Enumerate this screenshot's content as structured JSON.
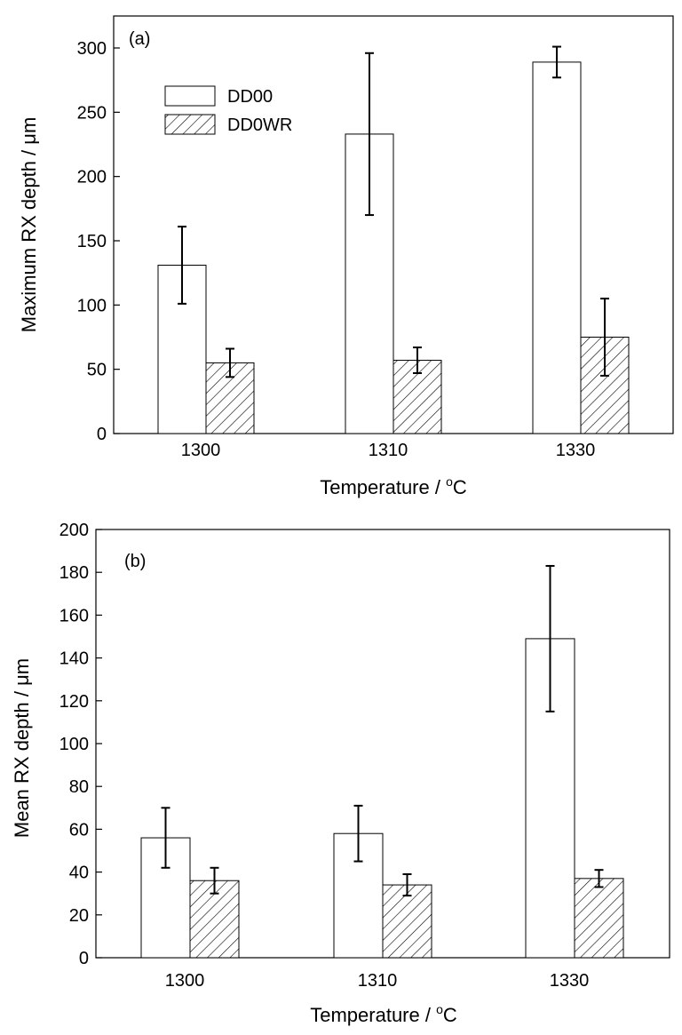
{
  "chart_data": [
    {
      "type": "bar",
      "panel_label": "(a)",
      "xlabel": "Temperature / ",
      "xlabel_unit": "C",
      "xlabel_degree": "o",
      "ylabel": "Maximum RX depth / μm",
      "ylim": [
        0,
        320
      ],
      "yticks": [
        0,
        50,
        100,
        150,
        200,
        250,
        300
      ],
      "categories": [
        "1300",
        "1310",
        "1330"
      ],
      "legend": {
        "position": "top-left",
        "entries": [
          "DD00",
          "DD0WR"
        ]
      },
      "grid": false,
      "series": [
        {
          "name": "DD00",
          "fill": "plain",
          "values": [
            131,
            233,
            289
          ],
          "errors": [
            30,
            63,
            12
          ]
        },
        {
          "name": "DD0WR",
          "fill": "hatched",
          "values": [
            55,
            57,
            75
          ],
          "errors": [
            11,
            10,
            30
          ]
        }
      ]
    },
    {
      "type": "bar",
      "panel_label": "(b)",
      "xlabel": "Temperature / ",
      "xlabel_unit": "C",
      "xlabel_degree": "o",
      "ylabel": "Mean RX depth / μm",
      "ylim": [
        0,
        200
      ],
      "yticks": [
        0,
        20,
        40,
        60,
        80,
        100,
        120,
        140,
        160,
        180,
        200
      ],
      "categories": [
        "1300",
        "1310",
        "1330"
      ],
      "grid": false,
      "series": [
        {
          "name": "DD00",
          "fill": "plain",
          "values": [
            56,
            58,
            149
          ],
          "errors": [
            14,
            13,
            34
          ]
        },
        {
          "name": "DD0WR",
          "fill": "hatched",
          "values": [
            36,
            34,
            37
          ],
          "errors": [
            6,
            5,
            4
          ]
        }
      ]
    }
  ],
  "colors": {
    "axis": "#000000",
    "bar_fill": "#ffffff",
    "hatch": "#000000"
  }
}
